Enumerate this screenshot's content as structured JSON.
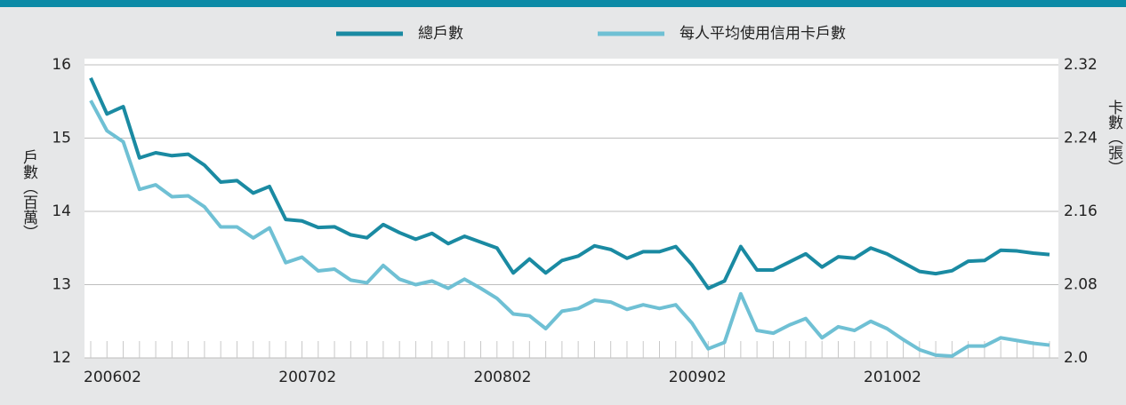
{
  "chart_data": {
    "type": "line",
    "categories": [
      "200602",
      null,
      null,
      null,
      null,
      null,
      null,
      null,
      null,
      null,
      null,
      null,
      "200702",
      null,
      null,
      null,
      null,
      null,
      null,
      null,
      null,
      null,
      null,
      null,
      "200802",
      null,
      null,
      null,
      null,
      null,
      null,
      null,
      null,
      null,
      null,
      null,
      "200902",
      null,
      null,
      null,
      null,
      null,
      null,
      null,
      null,
      null,
      null,
      null,
      "201002",
      null,
      null,
      null,
      null,
      null,
      null,
      null,
      null,
      null,
      null,
      null
    ],
    "series": [
      {
        "name": "總戶數",
        "color": "#1a8aa2",
        "values": [
          15.82,
          15.33,
          15.43,
          14.73,
          14.8,
          14.76,
          14.78,
          14.63,
          14.4,
          14.42,
          14.25,
          14.34,
          13.89,
          13.87,
          13.78,
          13.79,
          13.68,
          13.64,
          13.82,
          13.71,
          13.62,
          13.7,
          13.56,
          13.66,
          13.58,
          13.5,
          13.16,
          13.35,
          13.16,
          13.33,
          13.39,
          13.53,
          13.48,
          13.36,
          13.45,
          13.45,
          13.52,
          13.27,
          12.95,
          13.05,
          13.52,
          13.2,
          13.2,
          13.31,
          13.42,
          13.24,
          13.38,
          13.36,
          13.5,
          13.42,
          13.3,
          13.18,
          13.15,
          13.19,
          13.32,
          13.33,
          13.47,
          13.46,
          13.43,
          13.41
        ]
      },
      {
        "name": "每人平均使用信用卡戶數",
        "color": "#6fc0d4",
        "axis": "y2",
        "values": [
          2.281,
          2.248,
          2.236,
          2.184,
          2.189,
          2.176,
          2.177,
          2.165,
          2.143,
          2.143,
          2.131,
          2.142,
          2.104,
          2.11,
          2.095,
          2.097,
          2.085,
          2.082,
          2.101,
          2.086,
          2.08,
          2.084,
          2.076,
          2.086,
          2.076,
          2.065,
          2.048,
          2.046,
          2.032,
          2.051,
          2.054,
          2.063,
          2.061,
          2.053,
          2.058,
          2.054,
          2.058,
          2.038,
          2.01,
          2.017,
          2.07,
          2.03,
          2.027,
          2.036,
          2.043,
          2.022,
          2.034,
          2.03,
          2.04,
          2.032,
          2.02,
          2.009,
          2.003,
          2.002,
          2.013,
          2.013,
          2.022,
          2.019,
          2.016,
          2.014
        ]
      }
    ],
    "ylabel": "戶數（百萬）",
    "y2label": "卡數（張）",
    "ylim": [
      12,
      16
    ],
    "yticks": [
      12,
      13,
      14,
      15,
      16
    ],
    "y2lim": [
      2.0,
      2.32
    ],
    "y2ticks": [
      {
        "value": 2.0,
        "label": "2.0"
      },
      2.08,
      2.16,
      2.24,
      2.32
    ],
    "grid": true,
    "legend": "top"
  }
}
